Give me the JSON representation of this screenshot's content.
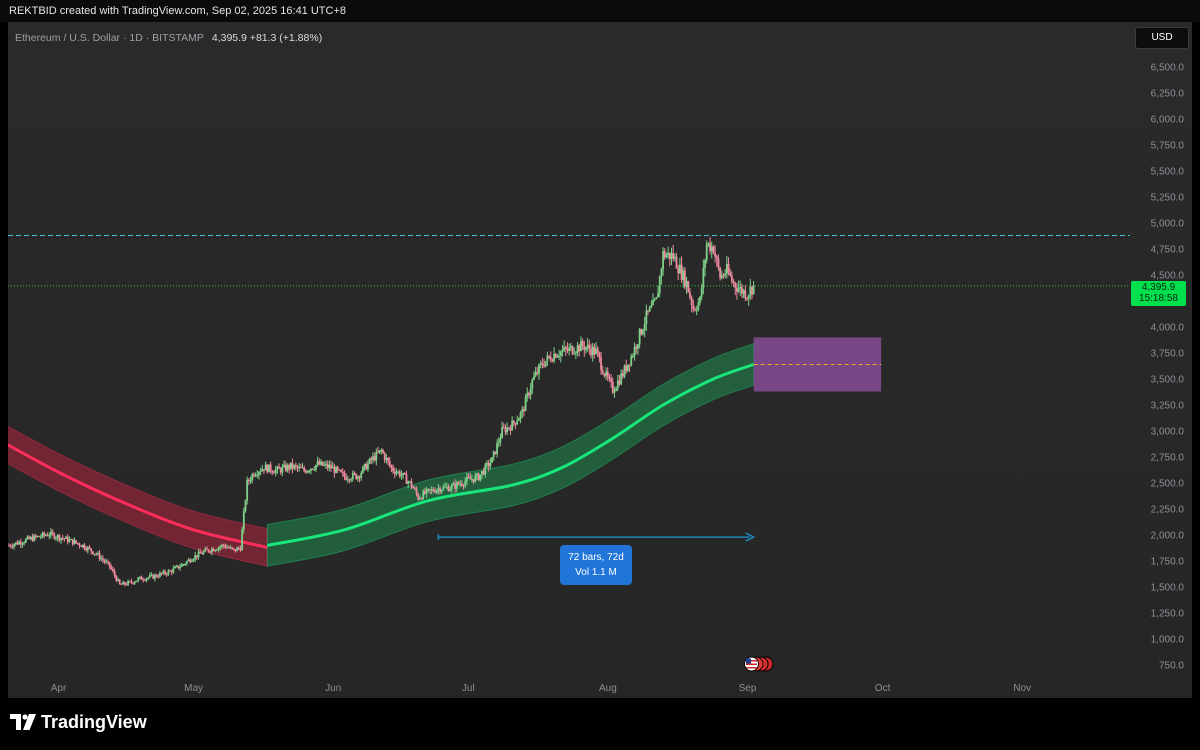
{
  "header": {
    "created_text": "REKTBID created with TradingView.com, Sep 02, 2025 16:41 UTC+8"
  },
  "legend": {
    "symbol_text": "Ethereum / U.S. Dollar · 1D · BITSTAMP",
    "price_text": "4,395.9  +81.3 (+1.88%)"
  },
  "currency_label": "USD",
  "last_price": {
    "price": "4,395.9",
    "countdown": "15:18:58"
  },
  "measure": {
    "line1": "72 bars, 72d",
    "line2": "Vol 1.1 M"
  },
  "branding": {
    "name": "TradingView"
  },
  "colors": {
    "up": "#7fd18a",
    "down": "#f08aa0",
    "bull_band_fill": "#1f8a4f",
    "bull_line": "#19e67a",
    "bear_band_fill": "#b0263f",
    "bear_line": "#ff2d5c",
    "target_box": "#8f4f9e",
    "resistance_line": "#3fc1d6",
    "price_line": "#2ecc40",
    "measure_arrow": "#1e88b6"
  },
  "chart_data": {
    "type": "candlestick",
    "symbol": "Ethereum / U.S. Dollar",
    "interval": "1D",
    "exchange": "BITSTAMP",
    "y_axis": {
      "ticks": [
        "6,500.0",
        "6,250.0",
        "6,000.0",
        "5,750.0",
        "5,500.0",
        "5,250.0",
        "5,000.0",
        "4,750.0",
        "4,500.0",
        "4,250.0",
        "4,000.0",
        "3,750.0",
        "3,500.0",
        "3,250.0",
        "3,000.0",
        "2,750.0",
        "2,500.0",
        "2,250.0",
        "2,000.0",
        "1,750.0",
        "1,500.0",
        "1,250.0",
        "1,000.0",
        "750.0"
      ]
    },
    "ylim": [
      750,
      6500
    ],
    "x_axis": {
      "ticks": [
        "Apr",
        "May",
        "Jun",
        "Jul",
        "Aug",
        "Sep",
        "Oct",
        "Nov"
      ]
    },
    "price_path": [
      [
        0,
        1900
      ],
      [
        12,
        1960
      ],
      [
        24,
        2010
      ],
      [
        34,
        1960
      ],
      [
        44,
        1900
      ],
      [
        52,
        1820
      ],
      [
        60,
        1700
      ],
      [
        66,
        1520
      ],
      [
        72,
        1540
      ],
      [
        78,
        1580
      ],
      [
        86,
        1600
      ],
      [
        96,
        1650
      ],
      [
        104,
        1720
      ],
      [
        110,
        1790
      ],
      [
        118,
        1850
      ],
      [
        128,
        1900
      ],
      [
        134,
        1850
      ],
      [
        138,
        1880
      ],
      [
        140,
        2200
      ],
      [
        142,
        2500
      ],
      [
        146,
        2600
      ],
      [
        152,
        2650
      ],
      [
        160,
        2620
      ],
      [
        168,
        2660
      ],
      [
        176,
        2620
      ],
      [
        184,
        2680
      ],
      [
        192,
        2650
      ],
      [
        200,
        2560
      ],
      [
        208,
        2570
      ],
      [
        216,
        2720
      ],
      [
        222,
        2810
      ],
      [
        228,
        2640
      ],
      [
        234,
        2580
      ],
      [
        240,
        2480
      ],
      [
        244,
        2360
      ],
      [
        248,
        2400
      ],
      [
        256,
        2450
      ],
      [
        264,
        2460
      ],
      [
        272,
        2520
      ],
      [
        280,
        2560
      ],
      [
        288,
        2720
      ],
      [
        294,
        3000
      ],
      [
        300,
        3060
      ],
      [
        306,
        3180
      ],
      [
        312,
        3480
      ],
      [
        318,
        3650
      ],
      [
        326,
        3750
      ],
      [
        334,
        3780
      ],
      [
        342,
        3820
      ],
      [
        350,
        3760
      ],
      [
        356,
        3520
      ],
      [
        360,
        3400
      ],
      [
        366,
        3550
      ],
      [
        372,
        3750
      ],
      [
        380,
        4100
      ],
      [
        386,
        4250
      ],
      [
        390,
        4700
      ],
      [
        396,
        4680
      ],
      [
        400,
        4550
      ],
      [
        404,
        4420
      ],
      [
        408,
        4180
      ],
      [
        412,
        4250
      ],
      [
        416,
        4800
      ],
      [
        420,
        4760
      ],
      [
        424,
        4480
      ],
      [
        428,
        4540
      ],
      [
        432,
        4420
      ],
      [
        436,
        4360
      ],
      [
        440,
        4320
      ],
      [
        444,
        4395.9
      ]
    ],
    "bull_band": {
      "start_x": 154,
      "center": [
        [
          154,
          1900
        ],
        [
          200,
          2050
        ],
        [
          250,
          2330
        ],
        [
          300,
          2480
        ],
        [
          330,
          2650
        ],
        [
          360,
          2930
        ],
        [
          390,
          3250
        ],
        [
          420,
          3500
        ],
        [
          444,
          3640
        ]
      ],
      "half_width": 200
    },
    "bear_band": {
      "center": [
        [
          -10,
          2950
        ],
        [
          30,
          2600
        ],
        [
          70,
          2300
        ],
        [
          110,
          2050
        ],
        [
          154,
          1880
        ]
      ],
      "half_width": 180
    },
    "target_box": {
      "x_start": 444,
      "x_end": 520,
      "y_low": 3380,
      "y_high": 3900,
      "mid": 3640
    },
    "resistance_level": 4880,
    "last_price": 4395.9,
    "measure_range": {
      "x_start": 256,
      "x_end": 444,
      "price": 1980,
      "bars": 72,
      "days": 72,
      "volume": "1.1 M"
    }
  }
}
